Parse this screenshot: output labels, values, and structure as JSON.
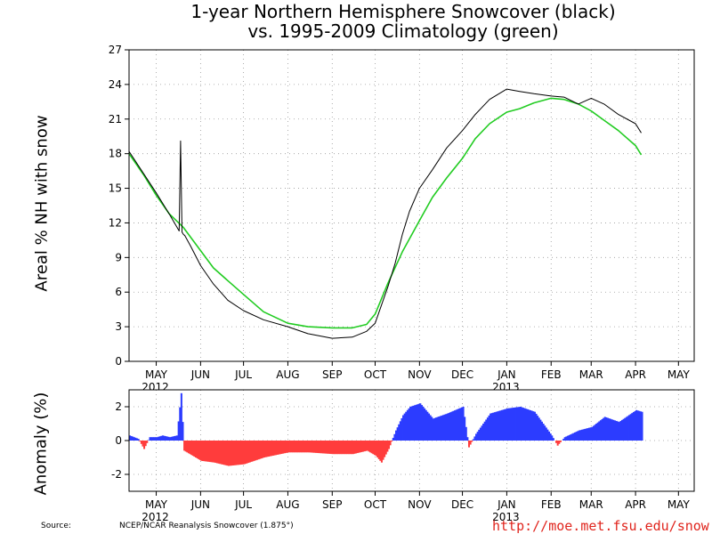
{
  "title_line1": "1-year Northern Hemisphere Snowcover (black)",
  "title_line2": "vs. 1995-2009 Climatology (green)",
  "footer": {
    "source_label": "Source:",
    "source_text": "NCEP/NCAR Reanalysis Snowcover (1.875°)",
    "url": "http://moe.met.fsu.edu/snow"
  },
  "colors": {
    "observed": "#000000",
    "climatology": "#22cc22",
    "positive_anomaly": "#2c3cff",
    "negative_anomaly": "#ff3c3c",
    "url_text": "#e0241c"
  },
  "chart_data": [
    {
      "type": "line",
      "title": "1-year Northern Hemisphere Snowcover (black) vs. 1995-2009 Climatology (green)",
      "ylabel": "Areal % NH with snow",
      "xlabel": "",
      "ylim": [
        0,
        27
      ],
      "yticks": [
        0,
        3,
        6,
        9,
        12,
        15,
        18,
        21,
        24,
        27
      ],
      "xlim": [
        "2012-04-12",
        "2013-05-12"
      ],
      "month_ticks": [
        "MAY",
        "JUN",
        "JUL",
        "AUG",
        "SEP",
        "OCT",
        "NOV",
        "DEC",
        "JAN",
        "FEB",
        "MAR",
        "APR",
        "MAY"
      ],
      "month_tick_dates": [
        "2012-05-01",
        "2012-06-01",
        "2012-07-01",
        "2012-08-01",
        "2012-09-01",
        "2012-10-01",
        "2012-11-01",
        "2012-12-01",
        "2013-01-01",
        "2013-02-01",
        "2013-03-01",
        "2013-04-01",
        "2013-05-01"
      ],
      "year_labels": [
        {
          "text": "2012",
          "under": "MAY"
        },
        {
          "text": "2013",
          "under": "JAN"
        }
      ],
      "grid": true,
      "series": [
        {
          "name": "black",
          "color": "#000000",
          "x": [
            "2012-04-12",
            "2012-04-22",
            "2012-05-01",
            "2012-05-10",
            "2012-05-17",
            "2012-05-18",
            "2012-05-19",
            "2012-05-20",
            "2012-05-21",
            "2012-05-25",
            "2012-06-01",
            "2012-06-10",
            "2012-06-20",
            "2012-07-01",
            "2012-07-15",
            "2012-08-01",
            "2012-08-15",
            "2012-09-01",
            "2012-09-15",
            "2012-09-25",
            "2012-10-01",
            "2012-10-10",
            "2012-10-15",
            "2012-10-20",
            "2012-10-25",
            "2012-11-01",
            "2012-11-10",
            "2012-11-20",
            "2012-12-01",
            "2012-12-10",
            "2012-12-20",
            "2013-01-01",
            "2013-01-10",
            "2013-01-20",
            "2013-02-01",
            "2013-02-10",
            "2013-02-20",
            "2013-03-01",
            "2013-03-10",
            "2013-03-20",
            "2013-04-01",
            "2013-04-05"
          ],
          "y": [
            18.2,
            16.3,
            14.6,
            12.8,
            11.3,
            19.1,
            11.2,
            11.0,
            10.9,
            10.0,
            8.3,
            6.7,
            5.3,
            4.4,
            3.6,
            3.0,
            2.4,
            2.0,
            2.1,
            2.6,
            3.3,
            6.5,
            8.5,
            11.0,
            13.0,
            15.0,
            16.6,
            18.5,
            20.0,
            21.4,
            22.7,
            23.6,
            23.4,
            23.2,
            23.0,
            22.9,
            22.3,
            22.8,
            22.3,
            21.4,
            20.6,
            19.8
          ]
        },
        {
          "name": "green",
          "color": "#22cc22",
          "x": [
            "2012-04-12",
            "2012-04-22",
            "2012-05-01",
            "2012-05-10",
            "2012-05-20",
            "2012-06-01",
            "2012-06-10",
            "2012-06-20",
            "2012-07-01",
            "2012-07-15",
            "2012-08-01",
            "2012-08-15",
            "2012-09-01",
            "2012-09-15",
            "2012-09-25",
            "2012-10-01",
            "2012-10-10",
            "2012-10-20",
            "2012-11-01",
            "2012-11-10",
            "2012-11-20",
            "2012-12-01",
            "2012-12-10",
            "2012-12-20",
            "2013-01-01",
            "2013-01-10",
            "2013-01-20",
            "2013-02-01",
            "2013-02-10",
            "2013-02-20",
            "2013-03-01",
            "2013-03-10",
            "2013-03-20",
            "2013-04-01",
            "2013-04-05"
          ],
          "y": [
            18.0,
            16.2,
            14.4,
            12.8,
            11.6,
            9.6,
            8.1,
            7.0,
            5.8,
            4.3,
            3.3,
            3.0,
            2.9,
            2.9,
            3.2,
            4.1,
            6.8,
            9.5,
            12.2,
            14.2,
            15.9,
            17.6,
            19.3,
            20.6,
            21.6,
            21.9,
            22.4,
            22.8,
            22.7,
            22.3,
            21.7,
            20.9,
            20.0,
            18.7,
            17.9
          ]
        }
      ]
    },
    {
      "type": "bar",
      "title": "",
      "ylabel": "Anomaly (%)",
      "xlabel": "",
      "ylim": [
        -3,
        3
      ],
      "yticks": [
        -2,
        0,
        2
      ],
      "month_ticks": [
        "MAY",
        "JUN",
        "JUL",
        "AUG",
        "SEP",
        "OCT",
        "NOV",
        "DEC",
        "JAN",
        "FEB",
        "MAR",
        "APR",
        "MAY"
      ],
      "year_labels": [
        {
          "text": "2012",
          "under": "MAY"
        },
        {
          "text": "2013",
          "under": "JAN"
        }
      ],
      "grid": true,
      "series": [
        {
          "name": "Anomaly",
          "x": [
            "2012-04-12",
            "2012-04-18",
            "2012-04-22",
            "2012-04-26",
            "2012-05-01",
            "2012-05-05",
            "2012-05-10",
            "2012-05-15",
            "2012-05-18",
            "2012-05-20",
            "2012-06-01",
            "2012-06-10",
            "2012-06-20",
            "2012-07-01",
            "2012-07-15",
            "2012-08-01",
            "2012-08-15",
            "2012-09-01",
            "2012-09-15",
            "2012-09-25",
            "2012-10-01",
            "2012-10-05",
            "2012-10-10",
            "2012-10-15",
            "2012-10-20",
            "2012-10-25",
            "2012-11-01",
            "2012-11-10",
            "2012-11-20",
            "2012-12-01",
            "2012-12-05",
            "2012-12-10",
            "2012-12-20",
            "2013-01-01",
            "2013-01-10",
            "2013-01-20",
            "2013-02-01",
            "2013-02-05",
            "2013-02-10",
            "2013-02-20",
            "2013-03-01",
            "2013-03-10",
            "2013-03-20",
            "2013-04-01",
            "2013-04-05"
          ],
          "y": [
            0.3,
            0.1,
            -0.5,
            0.2,
            0.2,
            0.3,
            0.2,
            0.3,
            2.8,
            -0.6,
            -1.2,
            -1.3,
            -1.5,
            -1.4,
            -1.0,
            -0.7,
            -0.7,
            -0.8,
            -0.8,
            -0.6,
            -0.9,
            -1.3,
            -0.5,
            0.6,
            1.5,
            2.0,
            2.2,
            1.3,
            1.6,
            2.0,
            -0.4,
            0.4,
            1.6,
            1.9,
            2.0,
            1.7,
            0.3,
            -0.3,
            0.2,
            0.6,
            0.8,
            1.4,
            1.1,
            1.8,
            1.7
          ]
        }
      ]
    }
  ]
}
